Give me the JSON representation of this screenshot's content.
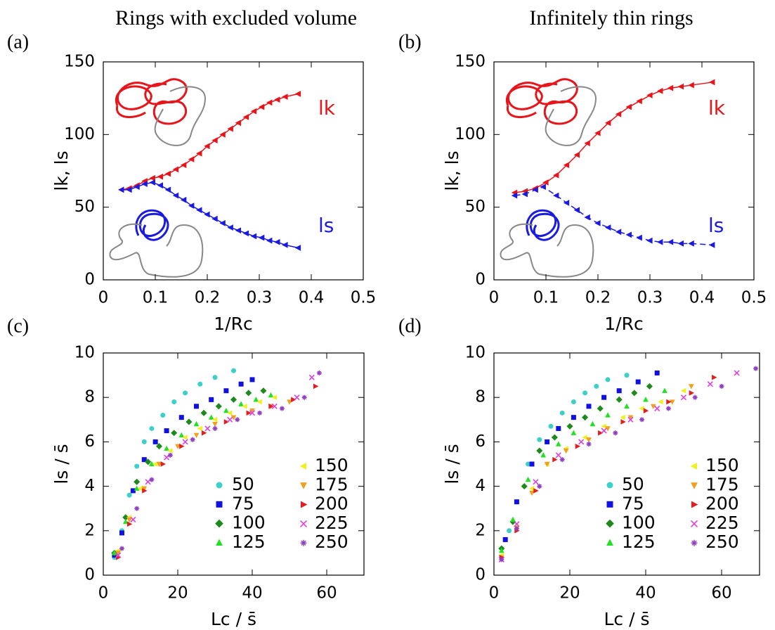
{
  "chart_data": [
    {
      "type": "line",
      "title": "Rings with excluded volume",
      "panel_label": "(a)",
      "xlabel": "1/Rc",
      "ylabel": "lk, ls",
      "xlim": [
        0,
        0.5
      ],
      "xticks": [
        0,
        0.1,
        0.2,
        0.3,
        0.4,
        0.5
      ],
      "ylim": [
        0,
        150
      ],
      "yticks": [
        0,
        50,
        100,
        150
      ],
      "series": [
        {
          "name": "lk",
          "color": "#e8141a",
          "dash": false,
          "marker": "triangle-left",
          "x": [
            0.035,
            0.05,
            0.065,
            0.08,
            0.095,
            0.11,
            0.125,
            0.14,
            0.155,
            0.17,
            0.185,
            0.2,
            0.215,
            0.23,
            0.245,
            0.26,
            0.275,
            0.29,
            0.305,
            0.32,
            0.335,
            0.35,
            0.375
          ],
          "values": [
            62,
            63,
            65,
            68,
            70,
            71,
            73,
            76,
            79,
            83,
            87,
            92,
            96,
            100,
            104,
            108,
            112,
            116,
            119,
            122,
            124,
            126,
            128
          ]
        },
        {
          "name": "ls",
          "color": "#1a1ae0",
          "dash": false,
          "marker": "triangle-left",
          "x": [
            0.035,
            0.05,
            0.065,
            0.08,
            0.095,
            0.11,
            0.125,
            0.14,
            0.155,
            0.17,
            0.185,
            0.2,
            0.215,
            0.23,
            0.245,
            0.26,
            0.275,
            0.29,
            0.305,
            0.32,
            0.335,
            0.35,
            0.375
          ],
          "values": [
            62,
            62,
            64,
            66,
            67,
            65,
            62,
            58,
            55,
            51,
            48,
            45,
            42,
            39,
            36,
            34,
            32,
            30,
            29,
            27,
            26,
            24,
            22
          ]
        }
      ]
    },
    {
      "type": "line",
      "title": "Infinitely thin rings",
      "panel_label": "(b)",
      "xlabel": "1/Rc",
      "ylabel": "lk, ls",
      "xlim": [
        0,
        0.5
      ],
      "xticks": [
        0,
        0.1,
        0.2,
        0.3,
        0.4,
        0.5
      ],
      "ylim": [
        0,
        150
      ],
      "yticks": [
        0,
        50,
        100,
        150
      ],
      "series": [
        {
          "name": "lk",
          "color": "#e8141a",
          "dash": false,
          "marker": "triangle-left",
          "x": [
            0.04,
            0.06,
            0.08,
            0.1,
            0.12,
            0.14,
            0.16,
            0.18,
            0.2,
            0.22,
            0.24,
            0.26,
            0.28,
            0.3,
            0.32,
            0.34,
            0.36,
            0.38,
            0.42
          ],
          "values": [
            60,
            61,
            63,
            67,
            72,
            79,
            86,
            94,
            101,
            108,
            114,
            119,
            123,
            127,
            130,
            132,
            133,
            134,
            136
          ]
        },
        {
          "name": "ls",
          "color": "#1a1ae0",
          "dash": true,
          "marker": "triangle-left",
          "x": [
            0.04,
            0.06,
            0.08,
            0.095,
            0.12,
            0.14,
            0.16,
            0.18,
            0.2,
            0.22,
            0.24,
            0.26,
            0.28,
            0.3,
            0.32,
            0.34,
            0.36,
            0.38,
            0.42
          ],
          "values": [
            58,
            59,
            62,
            64,
            58,
            53,
            48,
            43,
            39,
            36,
            33,
            31,
            29,
            27,
            26,
            26,
            25,
            25,
            24
          ]
        }
      ]
    },
    {
      "type": "scatter",
      "panel_label": "(c)",
      "xlabel": "Lc / s̄",
      "ylabel": "ls / s̄",
      "xlim": [
        0,
        70
      ],
      "xticks": [
        0,
        20,
        40,
        60
      ],
      "ylim": [
        0,
        10
      ],
      "yticks": [
        0,
        2,
        4,
        6,
        8,
        10
      ],
      "series": [
        {
          "name": "50",
          "color": "#3cd0c8",
          "marker": "circle",
          "x": [
            3,
            5,
            7,
            9,
            11,
            13,
            16,
            19,
            22,
            26,
            30,
            35
          ],
          "values": [
            0.8,
            2.0,
            3.6,
            4.9,
            6.0,
            6.6,
            7.2,
            7.8,
            8.2,
            8.6,
            8.9,
            9.2
          ]
        },
        {
          "name": "75",
          "color": "#1010e0",
          "marker": "square",
          "x": [
            3,
            5,
            8,
            11,
            14,
            17,
            21,
            25,
            29,
            33,
            37,
            40
          ],
          "values": [
            0.9,
            1.9,
            3.8,
            5.2,
            6.0,
            6.5,
            7.1,
            7.6,
            7.9,
            8.3,
            8.6,
            8.8
          ]
        },
        {
          "name": "100",
          "color": "#1e8a1e",
          "marker": "diamond",
          "x": [
            3,
            6,
            9,
            12,
            15,
            19,
            23,
            27,
            31,
            35,
            39,
            43
          ],
          "values": [
            1.0,
            2.6,
            4.2,
            5.1,
            5.8,
            6.4,
            6.9,
            7.3,
            7.6,
            7.9,
            8.2,
            8.3
          ]
        },
        {
          "name": "125",
          "color": "#22e022",
          "marker": "triangle-up",
          "x": [
            3,
            6,
            9,
            13,
            17,
            21,
            25,
            29,
            33,
            37,
            41,
            45
          ],
          "values": [
            1.0,
            2.4,
            3.9,
            5.0,
            5.7,
            6.3,
            6.8,
            7.1,
            7.4,
            7.7,
            7.9,
            8.1
          ]
        },
        {
          "name": "150",
          "color": "#f0f020",
          "marker": "triangle-left",
          "x": [
            4,
            7,
            10,
            14,
            18,
            22,
            26,
            30,
            34,
            38,
            42,
            46
          ],
          "values": [
            1.1,
            2.6,
            3.9,
            5.0,
            5.6,
            6.2,
            6.6,
            7.0,
            7.3,
            7.6,
            7.8,
            8.0
          ]
        },
        {
          "name": "175",
          "color": "#f0a020",
          "marker": "triangle-down",
          "x": [
            4,
            7,
            11,
            15,
            20,
            25,
            30,
            35,
            40,
            45,
            50
          ],
          "values": [
            1.0,
            2.5,
            3.9,
            5.0,
            5.8,
            6.3,
            6.8,
            7.1,
            7.4,
            7.6,
            7.8
          ]
        },
        {
          "name": "200",
          "color": "#e02020",
          "marker": "triangle-right",
          "x": [
            4,
            7,
            11,
            16,
            21,
            27,
            33,
            39,
            45,
            51,
            57
          ],
          "values": [
            0.8,
            2.3,
            3.8,
            5.0,
            5.8,
            6.4,
            6.9,
            7.3,
            7.6,
            7.9,
            8.5
          ]
        },
        {
          "name": "225",
          "color": "#e040e0",
          "marker": "cross",
          "x": [
            4,
            8,
            12,
            17,
            22,
            28,
            34,
            40,
            46,
            52,
            56
          ],
          "values": [
            0.9,
            2.5,
            4.2,
            5.3,
            6.0,
            6.6,
            7.0,
            7.3,
            7.6,
            8.0,
            8.9
          ]
        },
        {
          "name": "250",
          "color": "#9040c0",
          "marker": "star",
          "x": [
            5,
            9,
            13,
            18,
            24,
            30,
            36,
            42,
            48,
            54,
            58
          ],
          "values": [
            1.2,
            3.0,
            4.3,
            5.4,
            6.1,
            6.6,
            7.0,
            7.3,
            7.5,
            8.0,
            9.1
          ]
        }
      ]
    },
    {
      "type": "scatter",
      "panel_label": "(d)",
      "xlabel": "Lc / s̄",
      "ylabel": "ls / s̄",
      "xlim": [
        0,
        70
      ],
      "xticks": [
        0,
        20,
        40,
        60
      ],
      "ylim": [
        0,
        10
      ],
      "yticks": [
        0,
        2,
        4,
        6,
        8,
        10
      ],
      "series": [
        {
          "name": "50",
          "color": "#3cd0c8",
          "marker": "circle",
          "x": [
            2,
            4,
            6,
            9,
            12,
            15,
            18,
            21,
            24,
            27,
            30,
            35
          ],
          "values": [
            0.8,
            2.0,
            3.3,
            5.0,
            6.1,
            6.7,
            7.3,
            7.8,
            8.2,
            8.5,
            8.8,
            9.0
          ]
        },
        {
          "name": "75",
          "color": "#1010e0",
          "marker": "square",
          "x": [
            3,
            6,
            10,
            14,
            17,
            21,
            25,
            29,
            33,
            38,
            43
          ],
          "values": [
            1.6,
            3.3,
            5.0,
            6.0,
            6.6,
            7.1,
            7.6,
            8.0,
            8.3,
            8.7,
            9.1
          ]
        },
        {
          "name": "100",
          "color": "#1e8a1e",
          "marker": "diamond",
          "x": [
            2,
            5,
            8,
            12,
            16,
            20,
            24,
            28,
            33,
            37,
            41
          ],
          "values": [
            1.2,
            2.4,
            4.0,
            5.6,
            6.2,
            6.7,
            7.1,
            7.5,
            7.9,
            8.2,
            8.5
          ]
        },
        {
          "name": "125",
          "color": "#22e022",
          "marker": "triangle-up",
          "x": [
            2,
            5,
            9,
            13,
            17,
            21,
            26,
            30,
            35,
            40,
            45
          ],
          "values": [
            1.1,
            2.5,
            4.3,
            5.4,
            5.9,
            6.4,
            6.8,
            7.2,
            7.6,
            7.9,
            8.3
          ]
        },
        {
          "name": "150",
          "color": "#f0f020",
          "marker": "triangle-left",
          "x": [
            2,
            6,
            10,
            14,
            19,
            24,
            29,
            34,
            39,
            44,
            50
          ],
          "values": [
            0.9,
            2.2,
            3.9,
            5.0,
            5.7,
            6.2,
            6.7,
            7.1,
            7.5,
            7.8,
            8.3
          ]
        },
        {
          "name": "175",
          "color": "#f0a020",
          "marker": "triangle-down",
          "x": [
            2,
            6,
            10,
            14,
            19,
            25,
            30,
            36,
            42,
            47,
            52
          ],
          "values": [
            0.8,
            2.1,
            3.7,
            5.0,
            5.6,
            6.1,
            6.6,
            7.1,
            7.6,
            7.8,
            8.5
          ]
        },
        {
          "name": "200",
          "color": "#e02020",
          "marker": "triangle-right",
          "x": [
            2,
            6,
            11,
            16,
            22,
            28,
            34,
            40,
            46,
            52,
            58
          ],
          "values": [
            0.8,
            2.0,
            3.8,
            5.2,
            5.8,
            6.4,
            6.9,
            7.4,
            7.8,
            8.2,
            8.9
          ]
        },
        {
          "name": "225",
          "color": "#e040e0",
          "marker": "cross",
          "x": [
            2,
            6,
            11,
            17,
            23,
            29,
            36,
            43,
            50,
            57,
            64
          ],
          "values": [
            0.7,
            2.3,
            4.2,
            5.4,
            6.0,
            6.5,
            7.0,
            7.5,
            8.0,
            8.6,
            9.1
          ]
        },
        {
          "name": "250",
          "color": "#9040c0",
          "marker": "star",
          "x": [
            2,
            6,
            12,
            18,
            25,
            32,
            39,
            46,
            53,
            60,
            69
          ],
          "values": [
            0.7,
            2.1,
            4.0,
            5.2,
            5.9,
            6.4,
            7.0,
            7.5,
            8.0,
            8.5,
            9.3
          ]
        }
      ]
    }
  ]
}
